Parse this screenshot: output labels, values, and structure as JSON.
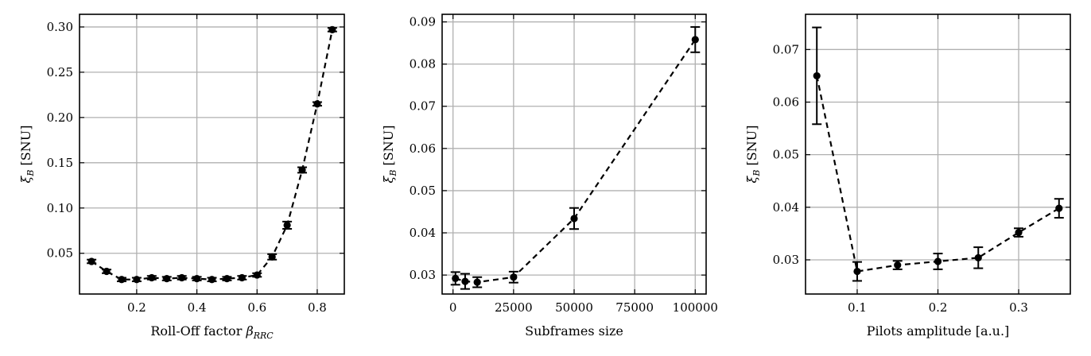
{
  "chart_data": [
    {
      "type": "line",
      "title": "",
      "xlabel": "Roll-Off factor",
      "xlabel_symbol": "β",
      "xlabel_sub": "RRC",
      "ylabel": "ξ",
      "ylabel_sub": "B",
      "ylabel_unit": "[SNU]",
      "xlim": [
        0.01,
        0.89
      ],
      "ylim": [
        0.005,
        0.314
      ],
      "xticks": [
        0.2,
        0.4,
        0.6,
        0.8
      ],
      "xtick_labels": [
        "0.2",
        "0.4",
        "0.6",
        "0.8"
      ],
      "yticks": [
        0.05,
        0.1,
        0.15,
        0.2,
        0.25,
        0.3
      ],
      "ytick_labels": [
        "0.05",
        "0.10",
        "0.15",
        "0.20",
        "0.25",
        "0.30"
      ],
      "grid": true,
      "series": [
        {
          "x": [
            0.05,
            0.1,
            0.15,
            0.2,
            0.25,
            0.3,
            0.35,
            0.4,
            0.45,
            0.5,
            0.55,
            0.6,
            0.65,
            0.7,
            0.75,
            0.8,
            0.85
          ],
          "y": [
            0.041,
            0.03,
            0.021,
            0.021,
            0.023,
            0.022,
            0.023,
            0.022,
            0.021,
            0.022,
            0.023,
            0.026,
            0.046,
            0.081,
            0.142,
            0.215,
            0.297
          ],
          "err": [
            0.002,
            0.002,
            0.002,
            0.002,
            0.002,
            0.002,
            0.002,
            0.002,
            0.002,
            0.002,
            0.002,
            0.002,
            0.003,
            0.004,
            0.003,
            0.002,
            0.002
          ]
        }
      ]
    },
    {
      "type": "line",
      "title": "",
      "xlabel": "Subframes size",
      "ylabel": "ξ",
      "ylabel_sub": "B",
      "ylabel_unit": "[SNU]",
      "xlim": [
        -4500,
        104500
      ],
      "ylim": [
        0.0255,
        0.0918
      ],
      "xticks": [
        0,
        25000,
        50000,
        75000,
        100000
      ],
      "xtick_labels": [
        "0",
        "25000",
        "50000",
        "75000",
        "100000"
      ],
      "yticks": [
        0.03,
        0.04,
        0.05,
        0.06,
        0.07,
        0.08,
        0.09
      ],
      "ytick_labels": [
        "0.03",
        "0.04",
        "0.05",
        "0.06",
        "0.07",
        "0.08",
        "0.09"
      ],
      "grid": true,
      "series": [
        {
          "x": [
            1000,
            5000,
            10000,
            25000,
            50000,
            100000
          ],
          "y": [
            0.0292,
            0.0285,
            0.0283,
            0.0295,
            0.0434,
            0.0858
          ],
          "err": [
            0.0015,
            0.0018,
            0.0012,
            0.0013,
            0.0025,
            0.003
          ]
        }
      ]
    },
    {
      "type": "line",
      "title": "",
      "xlabel": "Pilots amplitude [a.u.]",
      "ylabel": "ξ",
      "ylabel_sub": "B",
      "ylabel_unit": "[SNU]",
      "xlim": [
        0.036,
        0.364
      ],
      "ylim": [
        0.0235,
        0.0767
      ],
      "xticks": [
        0.1,
        0.2,
        0.3
      ],
      "xtick_labels": [
        "0.1",
        "0.2",
        "0.3"
      ],
      "yticks": [
        0.03,
        0.04,
        0.05,
        0.06,
        0.07
      ],
      "ytick_labels": [
        "0.03",
        "0.04",
        "0.05",
        "0.06",
        "0.07"
      ],
      "grid": true,
      "series": [
        {
          "x": [
            0.05,
            0.1,
            0.15,
            0.2,
            0.25,
            0.3,
            0.35
          ],
          "y": [
            0.065,
            0.0278,
            0.029,
            0.0297,
            0.0304,
            0.0352,
            0.0398
          ],
          "err": [
            0.0092,
            0.0018,
            0.0008,
            0.0015,
            0.002,
            0.0008,
            0.0018
          ]
        }
      ]
    }
  ]
}
